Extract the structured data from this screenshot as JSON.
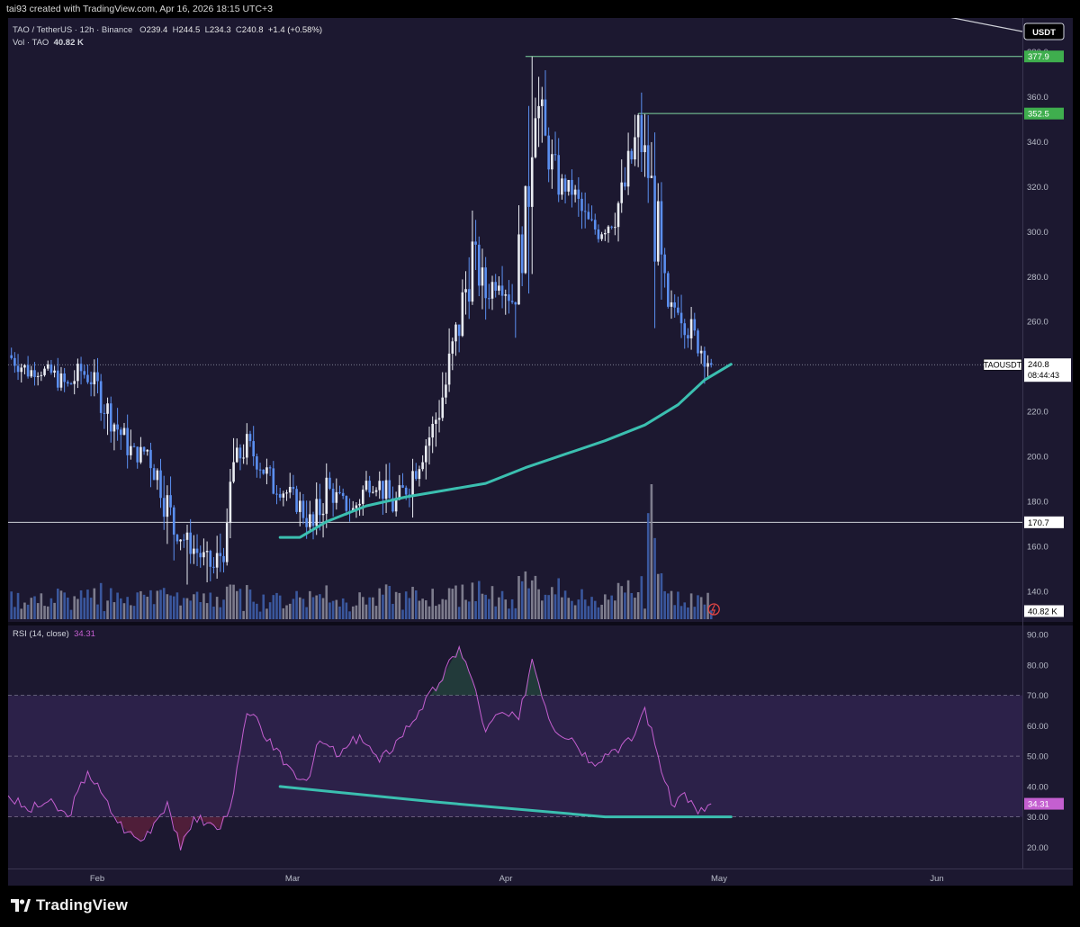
{
  "header": {
    "credit": "tai93 created with TradingView.com, Apr 16, 2026 18:15 UTC+3"
  },
  "legend": {
    "symbol": "TAO / TetherUS · 12h · Binance",
    "o_label": "O",
    "o_value": "239.4",
    "h_label": "H",
    "h_value": "244.5",
    "l_label": "L",
    "l_value": "234.3",
    "c_label": "C",
    "c_value": "240.8",
    "change": "+1.4 (+0.58%)",
    "vol_label": "Vol · TAO",
    "vol_value": "40.82 K"
  },
  "rsi_legend": {
    "label": "RSI (14, close)",
    "value": "34.31"
  },
  "currency": "USDT",
  "price_tags": {
    "high1": "377.9",
    "high2": "352.5",
    "support": "170.7",
    "symbol_tag": "TAOUSDT",
    "last": "240.8",
    "countdown": "08:44:43",
    "volume": "40.82 K",
    "rsi": "34.31"
  },
  "footer": {
    "brand": "TradingView"
  },
  "colors": {
    "background": "#1c1830",
    "up": "#e9ecf2",
    "down": "#5b8ff0",
    "ma": "#3bbfb0",
    "rsi": "#c45fd0",
    "level": "#7fd6a0",
    "tag_green": "#3fae4e"
  },
  "chart_data": [
    {
      "type": "candlestick",
      "title": "TAO / TetherUS · 12h · Binance",
      "x_ticks": [
        "Feb",
        "Mar",
        "Apr",
        "May",
        "Jun"
      ],
      "y_ticks": [
        140,
        160,
        180,
        200,
        220,
        240,
        260,
        280,
        300,
        320,
        340,
        360,
        380
      ],
      "ylim": [
        126,
        395
      ],
      "close_path": [
        {
          "date": "2026-01-15",
          "close": 245
        },
        {
          "date": "2026-01-18",
          "close": 238
        },
        {
          "date": "2026-01-21",
          "close": 238
        },
        {
          "date": "2026-01-24",
          "close": 231
        },
        {
          "date": "2026-01-26",
          "close": 238
        },
        {
          "date": "2026-01-28",
          "close": 233
        },
        {
          "date": "2026-01-30",
          "close": 220
        },
        {
          "date": "2026-02-01",
          "close": 210
        },
        {
          "date": "2026-02-03",
          "close": 200
        },
        {
          "date": "2026-02-05",
          "close": 203
        },
        {
          "date": "2026-02-07",
          "close": 188
        },
        {
          "date": "2026-02-09",
          "close": 168
        },
        {
          "date": "2026-02-11",
          "close": 162
        },
        {
          "date": "2026-02-13",
          "close": 156
        },
        {
          "date": "2026-02-15",
          "close": 150
        },
        {
          "date": "2026-02-17",
          "close": 163
        },
        {
          "date": "2026-02-18",
          "close": 196
        },
        {
          "date": "2026-02-20",
          "close": 205
        },
        {
          "date": "2026-02-22",
          "close": 197
        },
        {
          "date": "2026-02-24",
          "close": 187
        },
        {
          "date": "2026-02-26",
          "close": 184
        },
        {
          "date": "2026-02-28",
          "close": 178
        },
        {
          "date": "2026-03-02",
          "close": 168
        },
        {
          "date": "2026-03-04",
          "close": 186
        },
        {
          "date": "2026-03-06",
          "close": 180
        },
        {
          "date": "2026-03-08",
          "close": 176
        },
        {
          "date": "2026-03-10",
          "close": 187
        },
        {
          "date": "2026-03-12",
          "close": 188
        },
        {
          "date": "2026-03-14",
          "close": 178
        },
        {
          "date": "2026-03-16",
          "close": 186
        },
        {
          "date": "2026-03-18",
          "close": 200
        },
        {
          "date": "2026-03-20",
          "close": 212
        },
        {
          "date": "2026-03-22",
          "close": 232
        },
        {
          "date": "2026-03-24",
          "close": 259
        },
        {
          "date": "2026-03-26",
          "close": 290
        },
        {
          "date": "2026-03-28",
          "close": 272
        },
        {
          "date": "2026-03-30",
          "close": 281
        },
        {
          "date": "2026-04-01",
          "close": 270
        },
        {
          "date": "2026-04-03",
          "close": 305
        },
        {
          "date": "2026-04-04",
          "close": 370
        },
        {
          "date": "2026-04-06",
          "close": 338
        },
        {
          "date": "2026-04-08",
          "close": 322
        },
        {
          "date": "2026-04-10",
          "close": 318
        },
        {
          "date": "2026-04-12",
          "close": 305
        },
        {
          "date": "2026-04-14",
          "close": 300
        },
        {
          "date": "2026-04-16",
          "close": 305
        },
        {
          "date": "2026-04-18",
          "close": 320
        },
        {
          "date": "2026-04-20",
          "close": 345
        },
        {
          "date": "2026-04-22",
          "close": 320
        },
        {
          "date": "2026-04-24",
          "close": 262
        },
        {
          "date": "2026-04-26",
          "close": 268
        },
        {
          "date": "2026-04-28",
          "close": 255
        },
        {
          "date": "2026-04-30",
          "close": 246
        },
        {
          "date": "2026-05-01",
          "close": 240.8
        }
      ],
      "moving_average": [
        {
          "date": "2026-02-25",
          "value": 164
        },
        {
          "date": "2026-02-28",
          "value": 164
        },
        {
          "date": "2026-03-04",
          "value": 171
        },
        {
          "date": "2026-03-10",
          "value": 178
        },
        {
          "date": "2026-03-16",
          "value": 182
        },
        {
          "date": "2026-03-22",
          "value": 185
        },
        {
          "date": "2026-03-28",
          "value": 188
        },
        {
          "date": "2026-04-03",
          "value": 195
        },
        {
          "date": "2026-04-09",
          "value": 201
        },
        {
          "date": "2026-04-15",
          "value": 207
        },
        {
          "date": "2026-04-21",
          "value": 214
        },
        {
          "date": "2026-04-26",
          "value": 223
        },
        {
          "date": "2026-04-30",
          "value": 234
        },
        {
          "date": "2026-05-04",
          "value": 241
        }
      ],
      "levels": [
        377.9,
        352.5,
        170.7
      ],
      "last_price": 240.8,
      "volume_spike": {
        "date": "2026-04-22",
        "note": "largest volume bar"
      }
    },
    {
      "type": "line",
      "title": "RSI (14, close)",
      "y_ticks": [
        20,
        30,
        40,
        50,
        60,
        70,
        80,
        90
      ],
      "ylim": [
        13,
        93
      ],
      "bands": [
        30,
        50,
        70
      ],
      "rsi_path": [
        {
          "date": "2026-01-15",
          "value": 37
        },
        {
          "date": "2026-01-18",
          "value": 32
        },
        {
          "date": "2026-01-21",
          "value": 35
        },
        {
          "date": "2026-01-24",
          "value": 30
        },
        {
          "date": "2026-01-27",
          "value": 45
        },
        {
          "date": "2026-01-29",
          "value": 38
        },
        {
          "date": "2026-01-31",
          "value": 30
        },
        {
          "date": "2026-02-02",
          "value": 25
        },
        {
          "date": "2026-02-04",
          "value": 22
        },
        {
          "date": "2026-02-06",
          "value": 28
        },
        {
          "date": "2026-02-08",
          "value": 35
        },
        {
          "date": "2026-02-10",
          "value": 19
        },
        {
          "date": "2026-02-12",
          "value": 30
        },
        {
          "date": "2026-02-14",
          "value": 28
        },
        {
          "date": "2026-02-16",
          "value": 26
        },
        {
          "date": "2026-02-18",
          "value": 38
        },
        {
          "date": "2026-02-20",
          "value": 64
        },
        {
          "date": "2026-02-22",
          "value": 60
        },
        {
          "date": "2026-02-24",
          "value": 52
        },
        {
          "date": "2026-02-27",
          "value": 45
        },
        {
          "date": "2026-03-01",
          "value": 42
        },
        {
          "date": "2026-03-03",
          "value": 55
        },
        {
          "date": "2026-03-06",
          "value": 50
        },
        {
          "date": "2026-03-09",
          "value": 57
        },
        {
          "date": "2026-03-12",
          "value": 48
        },
        {
          "date": "2026-03-15",
          "value": 56
        },
        {
          "date": "2026-03-18",
          "value": 65
        },
        {
          "date": "2026-03-21",
          "value": 74
        },
        {
          "date": "2026-03-24",
          "value": 86
        },
        {
          "date": "2026-03-26",
          "value": 75
        },
        {
          "date": "2026-03-28",
          "value": 58
        },
        {
          "date": "2026-03-30",
          "value": 64
        },
        {
          "date": "2026-04-02",
          "value": 62
        },
        {
          "date": "2026-04-04",
          "value": 82
        },
        {
          "date": "2026-04-07",
          "value": 60
        },
        {
          "date": "2026-04-10",
          "value": 56
        },
        {
          "date": "2026-04-13",
          "value": 48
        },
        {
          "date": "2026-04-16",
          "value": 52
        },
        {
          "date": "2026-04-19",
          "value": 55
        },
        {
          "date": "2026-04-21",
          "value": 66
        },
        {
          "date": "2026-04-23",
          "value": 50
        },
        {
          "date": "2026-04-25",
          "value": 34
        },
        {
          "date": "2026-04-27",
          "value": 38
        },
        {
          "date": "2026-04-29",
          "value": 31
        },
        {
          "date": "2026-05-01",
          "value": 34.31
        }
      ],
      "trendline": [
        {
          "date": "2026-02-25",
          "value": 40
        },
        {
          "date": "2026-03-20",
          "value": 35
        },
        {
          "date": "2026-04-15",
          "value": 30
        },
        {
          "date": "2026-05-04",
          "value": 30
        }
      ]
    }
  ]
}
